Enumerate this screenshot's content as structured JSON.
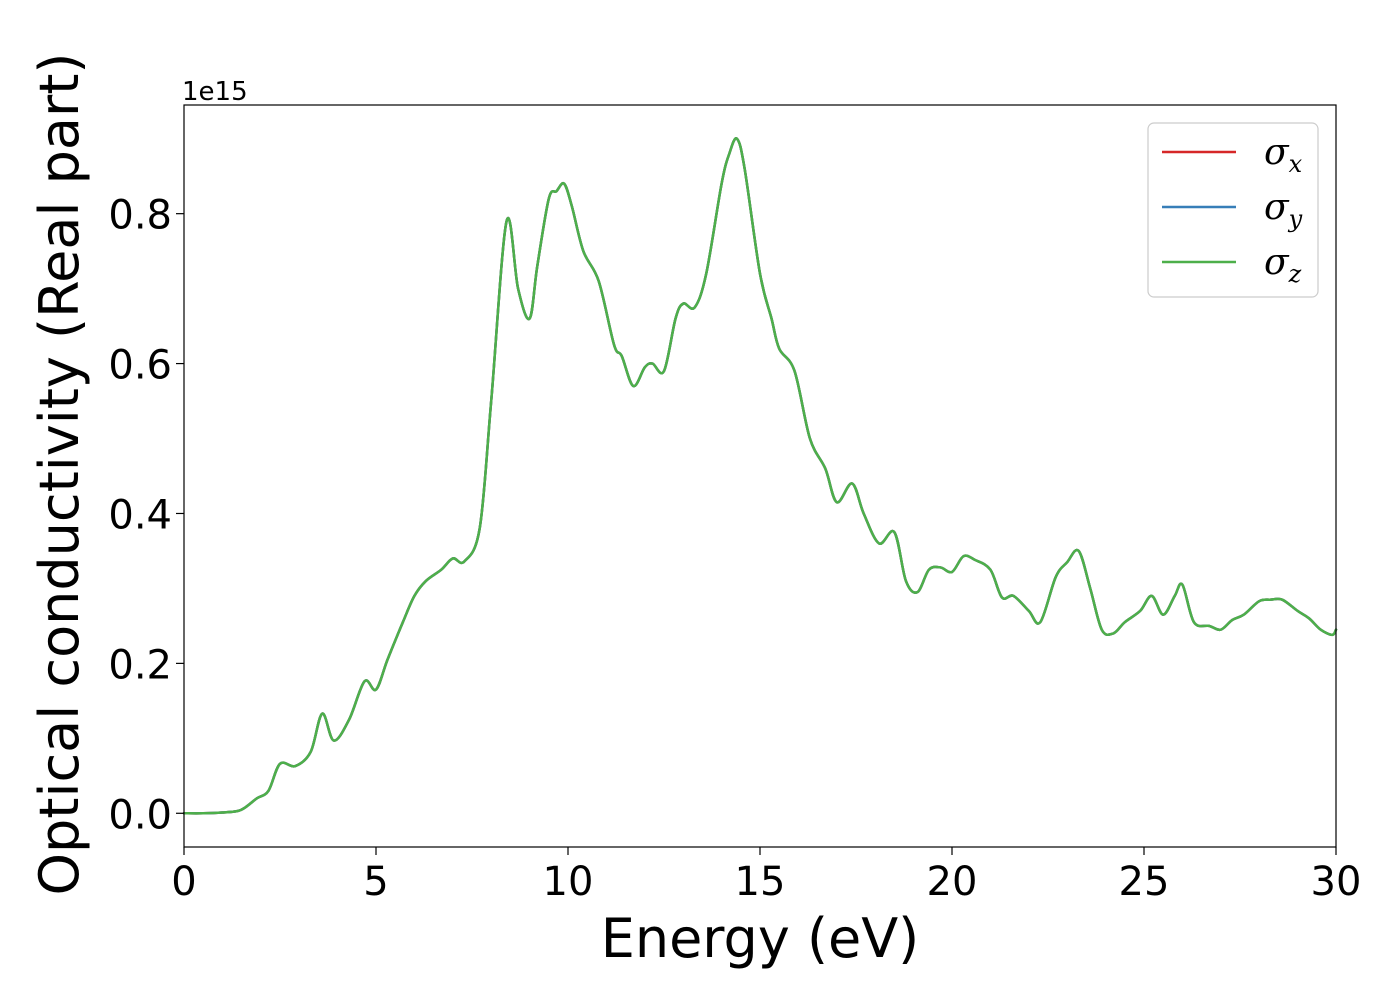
{
  "chart_data": {
    "type": "line",
    "title": "",
    "xlabel": "Energy (eV)",
    "ylabel": "Optical conductivity (Real part)",
    "y_offset_label": "1e15",
    "y_scale": 1000000000000000.0,
    "xlim": [
      0,
      30
    ],
    "ylim": [
      -0.045,
      0.945
    ],
    "x_ticks": [
      0,
      5,
      10,
      15,
      20,
      25,
      30
    ],
    "x_tick_labels": [
      "0",
      "5",
      "10",
      "15",
      "20",
      "25",
      "30"
    ],
    "y_ticks": [
      0.0,
      0.2,
      0.4,
      0.6,
      0.8
    ],
    "y_tick_labels": [
      "0.0",
      "0.2",
      "0.4",
      "0.6",
      "0.8"
    ],
    "grid": false,
    "legend_position": "upper right",
    "series": [
      {
        "name": "σx",
        "label_base": "σ",
        "label_sub": "x",
        "color": "#d62728",
        "x": [
          0,
          0.5,
          1.0,
          1.4,
          1.6,
          1.9,
          2.2,
          2.5,
          2.9,
          3.3,
          3.6,
          3.9,
          4.3,
          4.7,
          5.0,
          5.3,
          5.7,
          6.0,
          6.3,
          6.7,
          7.0,
          7.3,
          7.7,
          8.0,
          8.4,
          8.7,
          9.0,
          9.2,
          9.5,
          9.7,
          9.9,
          10.1,
          10.4,
          10.8,
          11.2,
          11.4,
          11.7,
          12.0,
          12.2,
          12.5,
          12.8,
          13.0,
          13.3,
          13.6,
          14.0,
          14.2,
          14.4,
          14.6,
          15.0,
          15.3,
          15.5,
          15.9,
          16.3,
          16.7,
          17.0,
          17.4,
          17.7,
          18.1,
          18.5,
          18.8,
          19.1,
          19.4,
          19.7,
          20.0,
          20.3,
          20.6,
          21.0,
          21.3,
          21.6,
          22.0,
          22.3,
          22.7,
          23.0,
          23.3,
          23.6,
          23.9,
          24.2,
          24.5,
          24.9,
          25.2,
          25.5,
          25.8,
          26.0,
          26.3,
          26.7,
          27.0,
          27.3,
          27.6,
          28.0,
          28.3,
          28.6,
          29.0,
          29.3,
          29.6,
          29.9,
          30.0
        ],
        "values": [
          0.0,
          0.0,
          0.001,
          0.003,
          0.008,
          0.02,
          0.03,
          0.066,
          0.063,
          0.082,
          0.133,
          0.097,
          0.125,
          0.176,
          0.165,
          0.205,
          0.255,
          0.29,
          0.31,
          0.325,
          0.34,
          0.336,
          0.38,
          0.55,
          0.79,
          0.7,
          0.66,
          0.73,
          0.82,
          0.83,
          0.84,
          0.81,
          0.75,
          0.71,
          0.625,
          0.61,
          0.57,
          0.595,
          0.6,
          0.59,
          0.66,
          0.68,
          0.675,
          0.72,
          0.84,
          0.88,
          0.9,
          0.86,
          0.72,
          0.66,
          0.62,
          0.59,
          0.5,
          0.46,
          0.415,
          0.44,
          0.4,
          0.36,
          0.375,
          0.31,
          0.295,
          0.325,
          0.328,
          0.322,
          0.343,
          0.338,
          0.325,
          0.288,
          0.29,
          0.27,
          0.255,
          0.315,
          0.335,
          0.35,
          0.3,
          0.245,
          0.24,
          0.255,
          0.27,
          0.29,
          0.265,
          0.29,
          0.305,
          0.255,
          0.25,
          0.245,
          0.258,
          0.265,
          0.283,
          0.285,
          0.285,
          0.27,
          0.26,
          0.245,
          0.238,
          0.245
        ]
      },
      {
        "name": "σy",
        "label_base": "σ",
        "label_sub": "y",
        "color": "#377eb8",
        "x": [
          0,
          0.5,
          1.0,
          1.4,
          1.6,
          1.9,
          2.2,
          2.5,
          2.9,
          3.3,
          3.6,
          3.9,
          4.3,
          4.7,
          5.0,
          5.3,
          5.7,
          6.0,
          6.3,
          6.7,
          7.0,
          7.3,
          7.7,
          8.0,
          8.4,
          8.7,
          9.0,
          9.2,
          9.5,
          9.7,
          9.9,
          10.1,
          10.4,
          10.8,
          11.2,
          11.4,
          11.7,
          12.0,
          12.2,
          12.5,
          12.8,
          13.0,
          13.3,
          13.6,
          14.0,
          14.2,
          14.4,
          14.6,
          15.0,
          15.3,
          15.5,
          15.9,
          16.3,
          16.7,
          17.0,
          17.4,
          17.7,
          18.1,
          18.5,
          18.8,
          19.1,
          19.4,
          19.7,
          20.0,
          20.3,
          20.6,
          21.0,
          21.3,
          21.6,
          22.0,
          22.3,
          22.7,
          23.0,
          23.3,
          23.6,
          23.9,
          24.2,
          24.5,
          24.9,
          25.2,
          25.5,
          25.8,
          26.0,
          26.3,
          26.7,
          27.0,
          27.3,
          27.6,
          28.0,
          28.3,
          28.6,
          29.0,
          29.3,
          29.6,
          29.9,
          30.0
        ],
        "values": [
          0.0,
          0.0,
          0.001,
          0.003,
          0.008,
          0.02,
          0.03,
          0.066,
          0.063,
          0.082,
          0.133,
          0.097,
          0.125,
          0.176,
          0.165,
          0.205,
          0.255,
          0.29,
          0.31,
          0.325,
          0.34,
          0.336,
          0.38,
          0.55,
          0.79,
          0.7,
          0.66,
          0.73,
          0.82,
          0.83,
          0.84,
          0.81,
          0.75,
          0.71,
          0.625,
          0.61,
          0.57,
          0.595,
          0.6,
          0.59,
          0.66,
          0.68,
          0.675,
          0.72,
          0.84,
          0.88,
          0.9,
          0.86,
          0.72,
          0.66,
          0.62,
          0.59,
          0.5,
          0.46,
          0.415,
          0.44,
          0.4,
          0.36,
          0.375,
          0.31,
          0.295,
          0.325,
          0.328,
          0.322,
          0.343,
          0.338,
          0.325,
          0.288,
          0.29,
          0.27,
          0.255,
          0.315,
          0.335,
          0.35,
          0.3,
          0.245,
          0.24,
          0.255,
          0.27,
          0.29,
          0.265,
          0.29,
          0.305,
          0.255,
          0.25,
          0.245,
          0.258,
          0.265,
          0.283,
          0.285,
          0.285,
          0.27,
          0.26,
          0.245,
          0.238,
          0.245
        ]
      },
      {
        "name": "σz",
        "label_base": "σ",
        "label_sub": "z",
        "color": "#4daf4a",
        "x": [
          0,
          0.5,
          1.0,
          1.4,
          1.6,
          1.9,
          2.2,
          2.5,
          2.9,
          3.3,
          3.6,
          3.9,
          4.3,
          4.7,
          5.0,
          5.3,
          5.7,
          6.0,
          6.3,
          6.7,
          7.0,
          7.3,
          7.7,
          8.0,
          8.4,
          8.7,
          9.0,
          9.2,
          9.5,
          9.7,
          9.9,
          10.1,
          10.4,
          10.8,
          11.2,
          11.4,
          11.7,
          12.0,
          12.2,
          12.5,
          12.8,
          13.0,
          13.3,
          13.6,
          14.0,
          14.2,
          14.4,
          14.6,
          15.0,
          15.3,
          15.5,
          15.9,
          16.3,
          16.7,
          17.0,
          17.4,
          17.7,
          18.1,
          18.5,
          18.8,
          19.1,
          19.4,
          19.7,
          20.0,
          20.3,
          20.6,
          21.0,
          21.3,
          21.6,
          22.0,
          22.3,
          22.7,
          23.0,
          23.3,
          23.6,
          23.9,
          24.2,
          24.5,
          24.9,
          25.2,
          25.5,
          25.8,
          26.0,
          26.3,
          26.7,
          27.0,
          27.3,
          27.6,
          28.0,
          28.3,
          28.6,
          29.0,
          29.3,
          29.6,
          29.9,
          30.0
        ],
        "values": [
          0.0,
          0.0,
          0.001,
          0.003,
          0.008,
          0.02,
          0.03,
          0.066,
          0.063,
          0.082,
          0.133,
          0.097,
          0.125,
          0.176,
          0.165,
          0.205,
          0.255,
          0.29,
          0.31,
          0.325,
          0.34,
          0.336,
          0.38,
          0.55,
          0.79,
          0.7,
          0.66,
          0.73,
          0.82,
          0.83,
          0.84,
          0.81,
          0.75,
          0.71,
          0.625,
          0.61,
          0.57,
          0.595,
          0.6,
          0.59,
          0.66,
          0.68,
          0.675,
          0.72,
          0.84,
          0.88,
          0.9,
          0.86,
          0.72,
          0.66,
          0.62,
          0.59,
          0.5,
          0.46,
          0.415,
          0.44,
          0.4,
          0.36,
          0.375,
          0.31,
          0.295,
          0.325,
          0.328,
          0.322,
          0.343,
          0.338,
          0.325,
          0.288,
          0.29,
          0.27,
          0.255,
          0.315,
          0.335,
          0.35,
          0.3,
          0.245,
          0.24,
          0.255,
          0.27,
          0.29,
          0.265,
          0.29,
          0.305,
          0.255,
          0.25,
          0.245,
          0.258,
          0.265,
          0.283,
          0.285,
          0.285,
          0.27,
          0.26,
          0.245,
          0.238,
          0.245
        ]
      }
    ]
  }
}
